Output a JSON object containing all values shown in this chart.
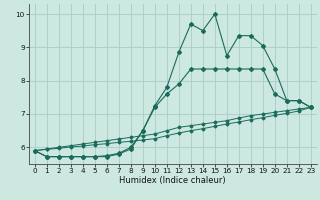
{
  "xlabel": "Humidex (Indice chaleur)",
  "bg_color": "#cce8e0",
  "grid_color": "#aaccC4",
  "line_color": "#1a6b5c",
  "xlim": [
    -0.5,
    23.5
  ],
  "ylim": [
    5.5,
    10.3
  ],
  "yticks": [
    6,
    7,
    8,
    9,
    10
  ],
  "xticks": [
    0,
    1,
    2,
    3,
    4,
    5,
    6,
    7,
    8,
    9,
    10,
    11,
    12,
    13,
    14,
    15,
    16,
    17,
    18,
    19,
    20,
    21,
    22,
    23
  ],
  "series1_x": [
    0,
    1,
    2,
    3,
    4,
    5,
    6,
    7,
    8,
    9,
    10,
    11,
    12,
    13,
    14,
    15,
    16,
    17,
    18,
    19,
    20,
    21,
    22,
    23
  ],
  "series1_y": [
    5.9,
    5.72,
    5.72,
    5.72,
    5.72,
    5.72,
    5.72,
    5.8,
    5.95,
    6.5,
    7.25,
    7.8,
    8.85,
    9.7,
    9.5,
    10.0,
    8.75,
    9.35,
    9.35,
    9.05,
    8.35,
    7.4,
    7.4,
    7.2
  ],
  "series2_x": [
    0,
    1,
    2,
    3,
    4,
    5,
    6,
    7,
    8,
    9,
    10,
    11,
    12,
    13,
    14,
    15,
    16,
    17,
    18,
    19,
    20,
    21,
    22,
    23
  ],
  "series2_y": [
    5.9,
    5.72,
    5.72,
    5.72,
    5.72,
    5.72,
    5.75,
    5.82,
    6.0,
    6.5,
    7.2,
    7.6,
    7.9,
    8.35,
    8.35,
    8.35,
    8.35,
    8.35,
    8.35,
    8.35,
    7.6,
    7.4,
    7.4,
    7.2
  ],
  "series3_x": [
    0,
    1,
    2,
    3,
    4,
    5,
    6,
    7,
    8,
    9,
    10,
    11,
    12,
    13,
    14,
    15,
    16,
    17,
    18,
    19,
    20,
    21,
    22,
    23
  ],
  "series3_y": [
    5.9,
    5.95,
    6.0,
    6.05,
    6.1,
    6.15,
    6.2,
    6.25,
    6.3,
    6.35,
    6.4,
    6.5,
    6.6,
    6.65,
    6.7,
    6.75,
    6.8,
    6.88,
    6.95,
    7.0,
    7.05,
    7.1,
    7.15,
    7.2
  ],
  "series4_x": [
    0,
    1,
    2,
    3,
    4,
    5,
    6,
    7,
    8,
    9,
    10,
    11,
    12,
    13,
    14,
    15,
    16,
    17,
    18,
    19,
    20,
    21,
    22,
    23
  ],
  "series4_y": [
    5.9,
    5.94,
    5.97,
    6.01,
    6.04,
    6.08,
    6.11,
    6.15,
    6.18,
    6.22,
    6.26,
    6.35,
    6.43,
    6.5,
    6.56,
    6.63,
    6.7,
    6.76,
    6.83,
    6.89,
    6.96,
    7.02,
    7.09,
    7.2
  ]
}
